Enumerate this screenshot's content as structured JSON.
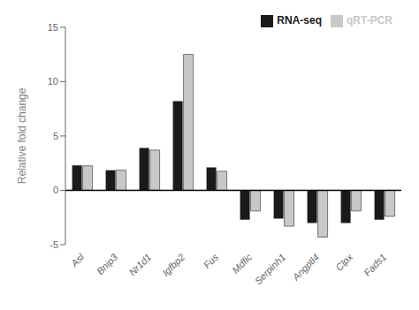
{
  "chart_data": {
    "type": "bar",
    "categories": [
      "Asl",
      "Bnip3",
      "Nr1d1",
      "Igfbp2",
      "Fus",
      "Mdfic",
      "Serpinh1",
      "Angptl4",
      "Clpx",
      "Fads1"
    ],
    "series": [
      {
        "name": "RNA-seq",
        "color": "#1a1a1a",
        "values": [
          2.3,
          1.85,
          3.9,
          8.2,
          2.1,
          -2.7,
          -2.6,
          -3.0,
          -3.0,
          -2.7
        ]
      },
      {
        "name": "qRT-PCR",
        "color": "#c8c8c8",
        "values": [
          2.25,
          1.85,
          3.7,
          12.5,
          1.75,
          -1.9,
          -3.3,
          -4.3,
          -1.9,
          -2.4
        ]
      }
    ],
    "ylabel": "Relative fold change",
    "ylim": [
      -5,
      15
    ],
    "yticks": [
      -5,
      0,
      5,
      10,
      15
    ],
    "legend": "upper right",
    "grid": false
  }
}
